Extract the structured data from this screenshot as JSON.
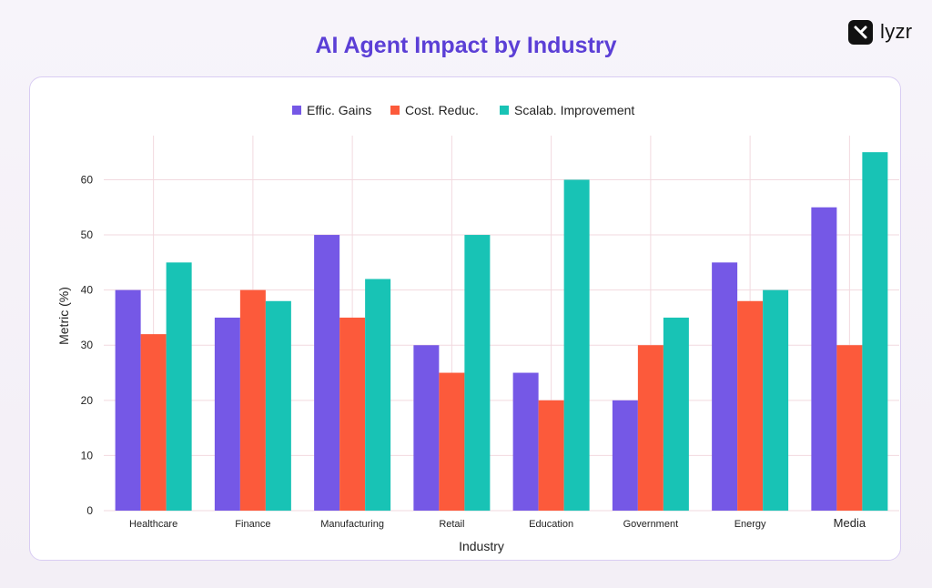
{
  "header": {
    "title": "AI Agent Impact by Industry"
  },
  "brand": {
    "name": "lyzr",
    "icon": "lyzr-logo-icon"
  },
  "colors": {
    "title": "#5b3fd6",
    "card_border": "#d9cdf3",
    "grid": "#f2d9df"
  },
  "chart_data": {
    "type": "bar",
    "title": "",
    "xlabel": "Industry",
    "ylabel": "Metric (%)",
    "ylim": [
      0,
      68
    ],
    "yticks": [
      0,
      10,
      20,
      30,
      40,
      50,
      60
    ],
    "grid": true,
    "legend_position": "top-center",
    "categories": [
      "Healthcare",
      "Finance",
      "Manufacturing",
      "Retail",
      "Education",
      "Government",
      "Energy",
      "Media"
    ],
    "series": [
      {
        "name": "Effic. Gains",
        "color": "#7558e6",
        "values": [
          40,
          35,
          50,
          30,
          25,
          20,
          45,
          55
        ]
      },
      {
        "name": "Cost. Reduc.",
        "color": "#fc5a3b",
        "values": [
          32,
          40,
          35,
          25,
          20,
          30,
          38,
          30
        ]
      },
      {
        "name": "Scalab. Improvement",
        "color": "#18c3b5",
        "values": [
          45,
          38,
          42,
          50,
          60,
          35,
          40,
          65
        ]
      }
    ]
  }
}
